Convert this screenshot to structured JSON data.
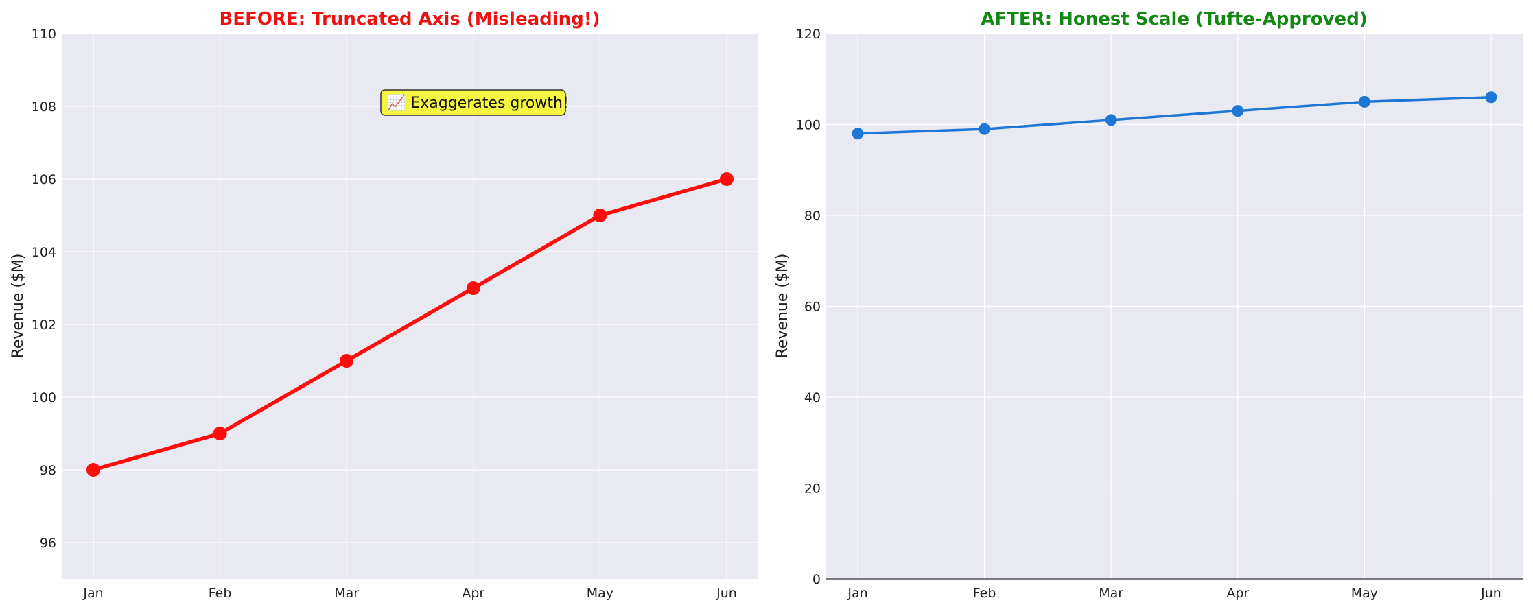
{
  "chart_data": [
    {
      "type": "line",
      "title": "BEFORE: Truncated Axis (Misleading!)",
      "title_color": "#ee1111",
      "xlabel": "",
      "ylabel": "Revenue ($M)",
      "categories": [
        "Jan",
        "Feb",
        "Mar",
        "Apr",
        "May",
        "Jun"
      ],
      "series": [
        {
          "values": [
            98,
            99,
            101,
            103,
            105,
            106
          ],
          "color": "#ff0d0d"
        }
      ],
      "ylim": [
        95,
        110
      ],
      "yticks": [
        96,
        98,
        100,
        102,
        104,
        106,
        108,
        110
      ],
      "grid": true,
      "annotation": {
        "text": "📈 Exaggerates growth!",
        "background": "#f5f542",
        "x_category": "Apr",
        "y": 108
      }
    },
    {
      "type": "line",
      "title": "AFTER: Honest Scale (Tufte-Approved)",
      "title_color": "#118811",
      "xlabel": "",
      "ylabel": "Revenue ($M)",
      "categories": [
        "Jan",
        "Feb",
        "Mar",
        "Apr",
        "May",
        "Jun"
      ],
      "series": [
        {
          "values": [
            98,
            99,
            101,
            103,
            105,
            106
          ],
          "color": "#1f77d4"
        }
      ],
      "ylim": [
        0,
        120
      ],
      "yticks": [
        0,
        20,
        40,
        60,
        80,
        100,
        120
      ],
      "grid": true
    }
  ]
}
